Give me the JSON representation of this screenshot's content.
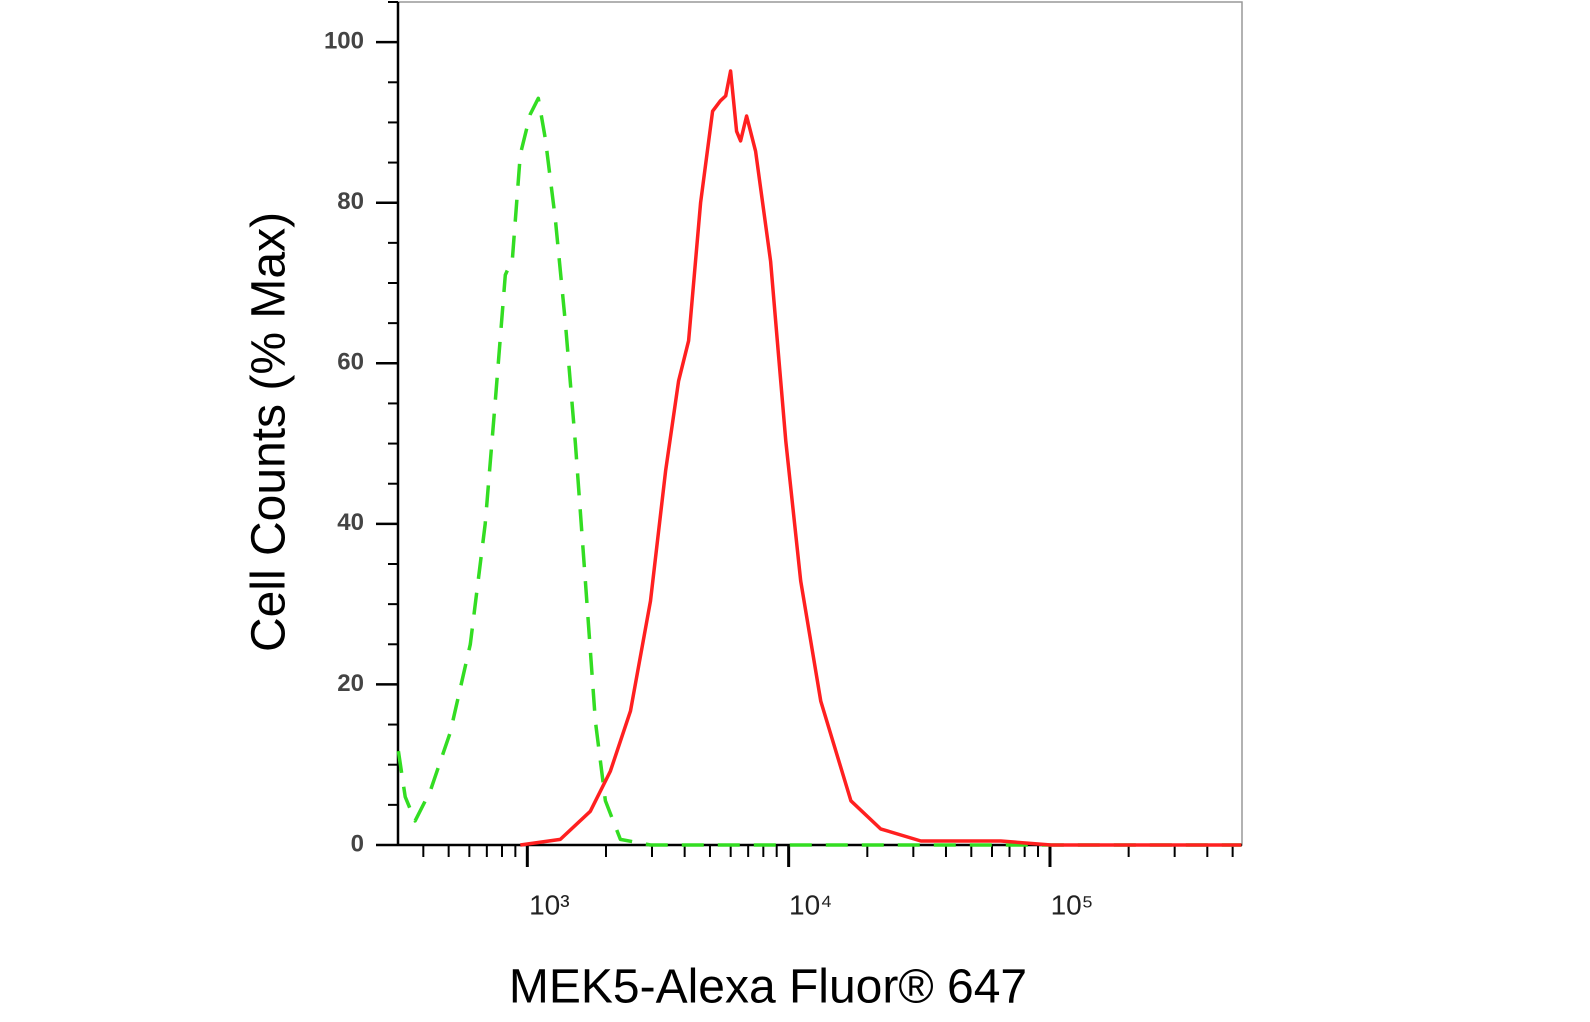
{
  "chart_data": {
    "type": "line",
    "y_label": "Cell Counts (% Max)",
    "x_label": "MEK5-Alexa Fluor® 647",
    "x_scale": "log",
    "xlim": [
      320,
      543000
    ],
    "ylim": [
      0,
      105
    ],
    "xticks": [
      {
        "value": 1000,
        "label": "10³"
      },
      {
        "value": 10000,
        "label": "10⁴"
      },
      {
        "value": 100000,
        "label": "10⁵"
      }
    ],
    "xminor_ticks": [
      400,
      500,
      600,
      700,
      800,
      900,
      2000,
      3000,
      4000,
      5000,
      6000,
      7000,
      8000,
      9000,
      20000,
      30000,
      40000,
      50000,
      60000,
      70000,
      80000,
      90000,
      200000,
      300000,
      400000,
      500000
    ],
    "yticks": [
      0,
      20,
      40,
      60,
      80,
      100
    ],
    "yminor_ticks": [
      5,
      10,
      15,
      25,
      30,
      35,
      45,
      50,
      55,
      65,
      70,
      75,
      85,
      90,
      95,
      105
    ],
    "series": [
      {
        "color": "#33dd22",
        "dashed": true,
        "x": [
          321,
          341,
          372,
          425,
          507,
          605,
          690,
          753,
          824,
          877,
          940,
          1026,
          1102,
          1172,
          1280,
          1399,
          1528,
          1667,
          1822,
          1990,
          2270,
          2960,
          11120,
          540000
        ],
        "values": [
          11.7,
          6,
          3,
          6.7,
          14,
          25,
          40,
          55,
          71,
          73,
          86,
          91,
          93,
          88,
          78,
          65,
          50,
          33,
          15.4,
          5.5,
          0.7,
          0,
          0,
          0
        ]
      },
      {
        "color": "#ff2020",
        "dashed": false,
        "x": [
          940,
          1337,
          1742,
          2080,
          2482,
          2960,
          3381,
          3793,
          4141,
          4603,
          5117,
          5483,
          5741,
          5998,
          6324,
          6546,
          6902,
          7476,
          8531,
          9750,
          11120,
          13270,
          17300,
          22490,
          32060,
          64860,
          100900,
          540000
        ],
        "values": [
          0,
          0.7,
          4.2,
          9.2,
          16.7,
          30.4,
          46.6,
          57.8,
          62.8,
          80,
          91.4,
          92.7,
          93.3,
          96.4,
          88.9,
          87.7,
          90.8,
          86.4,
          72.7,
          50.3,
          32.9,
          17.9,
          5.5,
          2,
          0.5,
          0.5,
          0,
          0
        ]
      }
    ]
  }
}
